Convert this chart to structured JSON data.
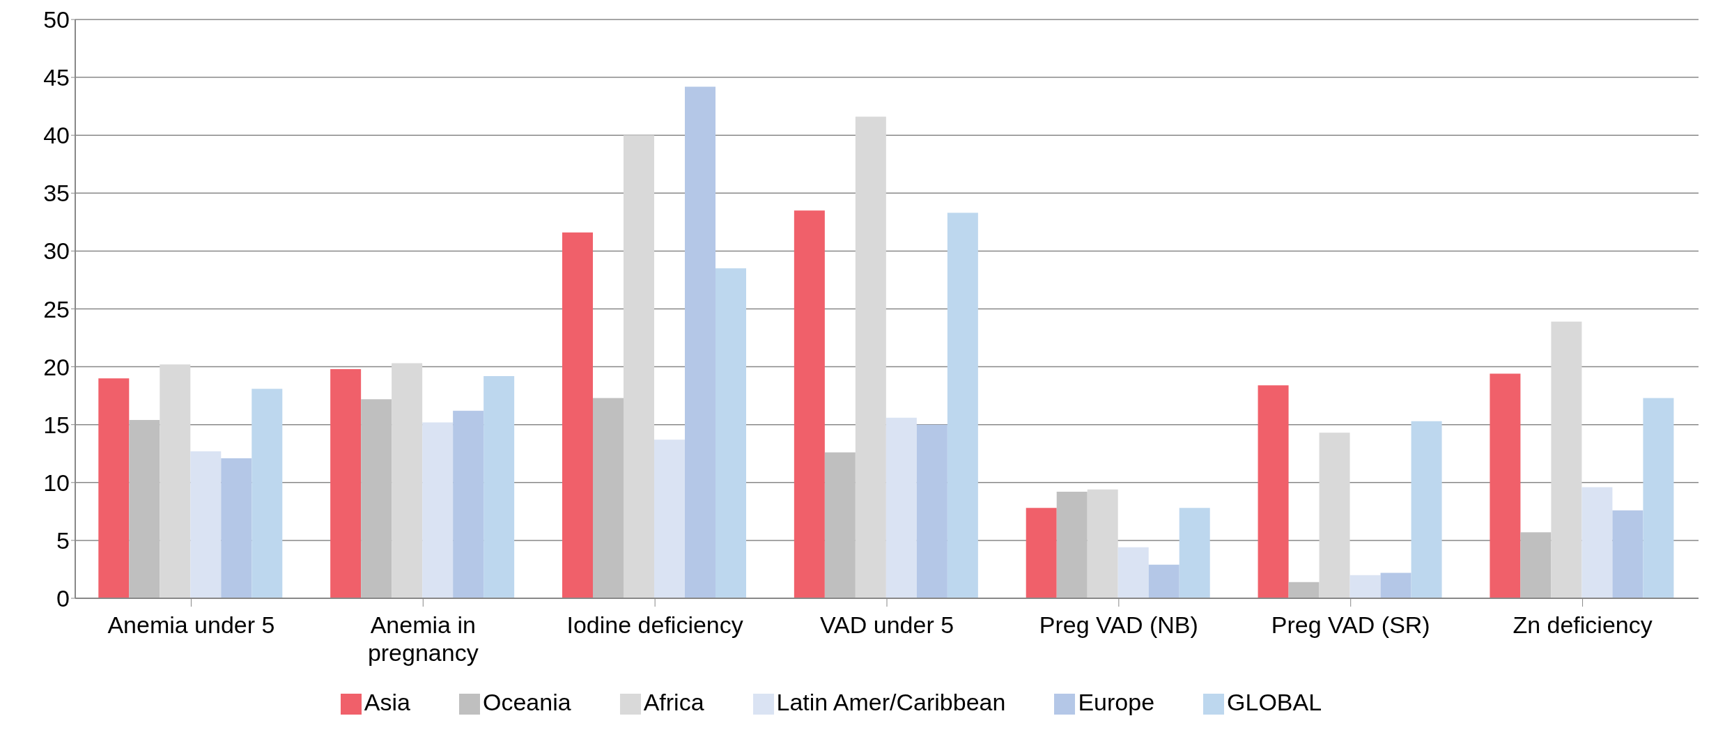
{
  "chart_data": {
    "type": "bar",
    "categories": [
      "Anemia under 5",
      "Anemia in pregnancy",
      "Iodine deficiency",
      "VAD under 5",
      "Preg VAD (NB)",
      "Preg VAD (SR)",
      "Zn deficiency"
    ],
    "series": [
      {
        "name": "Asia",
        "color": "#f0606a",
        "values": [
          19.0,
          19.8,
          31.6,
          33.5,
          7.8,
          18.4,
          19.4
        ]
      },
      {
        "name": "Oceania",
        "color": "#bfbfbf",
        "values": [
          15.4,
          17.2,
          17.3,
          12.6,
          9.2,
          1.4,
          5.7
        ]
      },
      {
        "name": "Africa",
        "color": "#d9d9d9",
        "values": [
          20.2,
          20.3,
          40.0,
          41.6,
          9.4,
          14.3,
          23.9
        ]
      },
      {
        "name": "Latin Amer/Caribbean",
        "color": "#dae3f3",
        "values": [
          12.7,
          15.2,
          13.7,
          15.6,
          4.4,
          2.0,
          9.6
        ]
      },
      {
        "name": "Europe",
        "color": "#b4c7e7",
        "values": [
          12.1,
          16.2,
          44.2,
          15.0,
          2.9,
          2.2,
          7.6
        ]
      },
      {
        "name": "GLOBAL",
        "color": "#bdd7ee",
        "values": [
          18.1,
          19.2,
          28.5,
          33.3,
          7.8,
          15.3,
          17.3
        ]
      }
    ],
    "ylim": [
      0,
      50
    ],
    "yticks": [
      0,
      5,
      10,
      15,
      20,
      25,
      30,
      35,
      40,
      45,
      50
    ],
    "grid": "y",
    "legend": "bottom"
  }
}
